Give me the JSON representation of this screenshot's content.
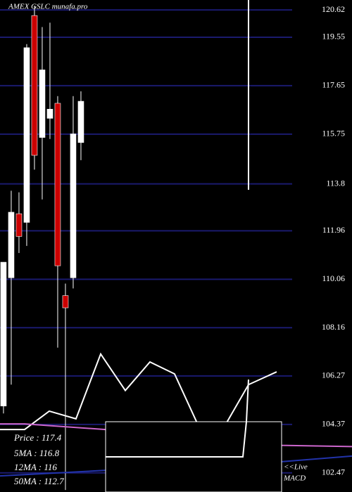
{
  "chart_data": {
    "type": "candlestick",
    "title": "AMEX  GSLC munafa.pro",
    "x": [
      0,
      1,
      2,
      3,
      4,
      5,
      6,
      7,
      8,
      9,
      10
    ],
    "open": [
      105.09,
      110.12,
      112.63,
      112.29,
      120.4,
      115.62,
      116.37,
      116.96,
      109.42,
      110.12,
      115.42
    ],
    "high": [
      110.73,
      113.53,
      113.47,
      119.28,
      120.79,
      119.95,
      120.12,
      117.24,
      109.89,
      117.24,
      117.43
    ],
    "low": [
      104.8,
      105.93,
      111.09,
      111.37,
      114.36,
      113.19,
      115.56,
      107.38,
      101.8,
      109.7,
      114.73
    ],
    "close": [
      110.73,
      112.69,
      111.74,
      119.14,
      114.92,
      118.27,
      116.73,
      110.59,
      108.94,
      115.76,
      117.04
    ],
    "up_color": "#ffffff",
    "down_color": "#cc0000",
    "lines": [
      {
        "color": "#ffffff",
        "x": [
          -0.45,
          2.73,
          5.91,
          9.36,
          12.55,
          15.73,
          18.91,
          22.09,
          25.27,
          28.45,
          31.64,
          35.27
        ],
        "values": [
          104.17,
          104.17,
          104.89,
          104.59,
          107.13,
          105.7,
          106.82,
          106.35,
          104.25,
          104.25,
          105.93,
          106.43
        ]
      },
      {
        "color": "#cc66cc",
        "x": [
          -0.45,
          2.73,
          13.18,
          35.91,
          45
        ],
        "values": [
          104.39,
          104.39,
          104.17,
          103.55,
          103.5
        ]
      },
      {
        "color": "#2233aa",
        "x": [
          -0.45,
          13.18,
          35.91,
          45
        ],
        "values": [
          102.35,
          102.57,
          102.91,
          103.13
        ]
      }
    ],
    "xlim": [
      -0.45,
      45
    ],
    "ylim": [
      101.72,
      121.01
    ],
    "yticks": [
      120.62,
      119.55,
      117.65,
      115.75,
      113.8,
      111.96,
      110.06,
      108.16,
      106.27,
      104.37,
      102.47
    ],
    "grid": true,
    "grid_color": "#1a1a6e",
    "annotations": [
      "Price   : 117.4",
      "5MA : 116.8",
      "12MA : 116",
      "50MA : 112.7"
    ],
    "live_label": "<<Live",
    "macd_label": "MACD"
  }
}
